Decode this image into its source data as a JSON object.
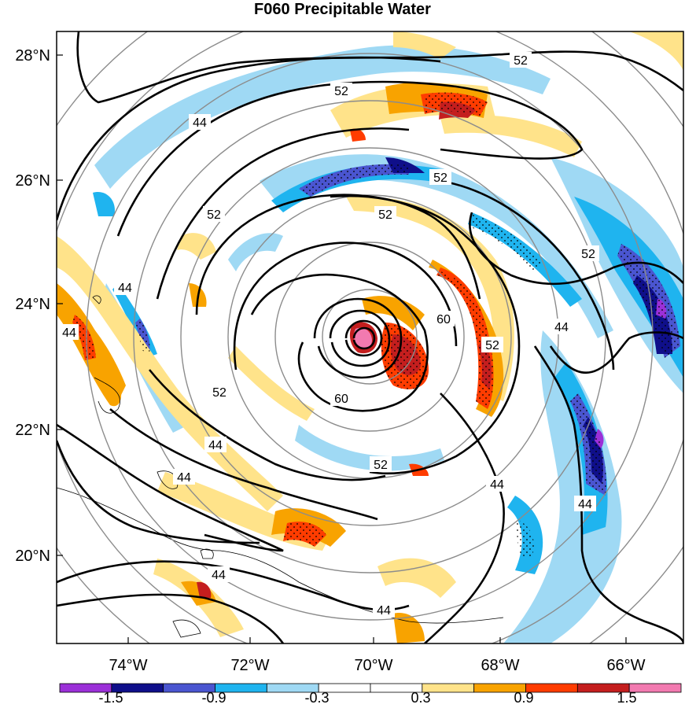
{
  "title": "F060 Precipitable Water",
  "map": {
    "lat_labels": [
      "28°N",
      "26°N",
      "24°N",
      "22°N",
      "20°N"
    ],
    "lon_labels": [
      "74°W",
      "72°W",
      "70°W",
      "68°W",
      "66°W"
    ],
    "contour_labels": [
      "52",
      "52",
      "44",
      "52",
      "52",
      "52",
      "52",
      "44",
      "44",
      "60",
      "52",
      "60",
      "52",
      "52",
      "44",
      "44",
      "44",
      "44",
      "44",
      "44",
      "44"
    ],
    "colors": {
      "background": "#ffffff",
      "range_rings": "#8c8c8c",
      "contour": "#000000"
    }
  },
  "colorbar": {
    "labels": [
      "-1.5",
      "-0.9",
      "-0.3",
      "0.3",
      "0.9",
      "1.5"
    ],
    "colors": [
      "#9b30d8",
      "#0f0f8a",
      "#4a55d0",
      "#1fb4ef",
      "#9fd9f4",
      "#ffffff",
      "#ffffff",
      "#ffe38a",
      "#f8a300",
      "#ff3c00",
      "#c41e1e",
      "#f27ab0"
    ]
  }
}
